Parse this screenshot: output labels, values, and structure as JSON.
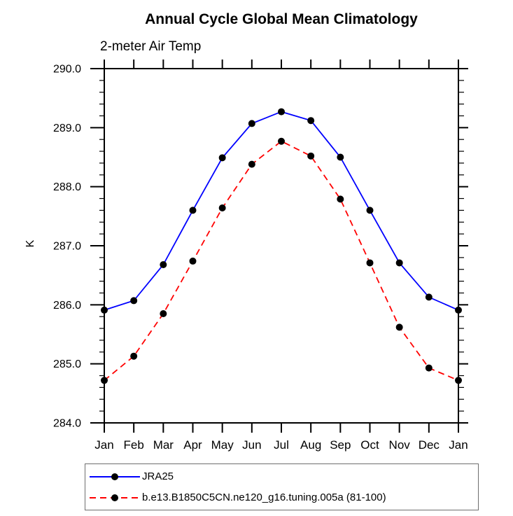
{
  "page": {
    "background": "#ffffff"
  },
  "chart": {
    "title": "Annual Cycle Global Mean Climatology",
    "subtitle": "2-meter Air Temp",
    "ylabel": "K"
  },
  "chart_data": {
    "type": "line",
    "title": "Annual Cycle Global Mean Climatology",
    "subtitle": "2-meter Air Temp",
    "xlabel": "",
    "ylabel": "K",
    "categories": [
      "Jan",
      "Feb",
      "Mar",
      "Apr",
      "May",
      "Jun",
      "Jul",
      "Aug",
      "Sep",
      "Oct",
      "Nov",
      "Dec",
      "Jan"
    ],
    "series": [
      {
        "name": "JRA25",
        "color": "#0000ff",
        "line_style": "solid",
        "marker": "filled-circle",
        "marker_color": "#000000",
        "values": [
          285.91,
          286.07,
          286.68,
          287.6,
          288.49,
          289.07,
          289.27,
          289.12,
          288.5,
          287.6,
          286.71,
          286.13,
          285.91
        ]
      },
      {
        "name": "b.e13.B1850C5CN.ne120_g16.tuning.005a (81-100)",
        "color": "#ff0000",
        "line_style": "dashed",
        "marker": "filled-circle",
        "marker_color": "#000000",
        "values": [
          284.72,
          285.13,
          285.85,
          286.74,
          287.64,
          288.38,
          288.77,
          288.52,
          287.79,
          286.71,
          285.62,
          284.93,
          284.72
        ]
      }
    ],
    "ylim": [
      284.0,
      290.0
    ],
    "ytick_interval": 1.0,
    "ytick_minor_interval": 0.2,
    "ytick_labels": [
      "284.0",
      "285.0",
      "286.0",
      "287.0",
      "288.0",
      "289.0",
      "290.0"
    ],
    "grid": false,
    "legend_position": "bottom-left"
  },
  "legend": {
    "entries": [
      {
        "label": "JRA25",
        "color": "#0000ff",
        "style": "solid"
      },
      {
        "label": "b.e13.B1850C5CN.ne120_g16.tuning.005a (81-100)",
        "color": "#ff0000",
        "style": "dashed"
      }
    ]
  }
}
